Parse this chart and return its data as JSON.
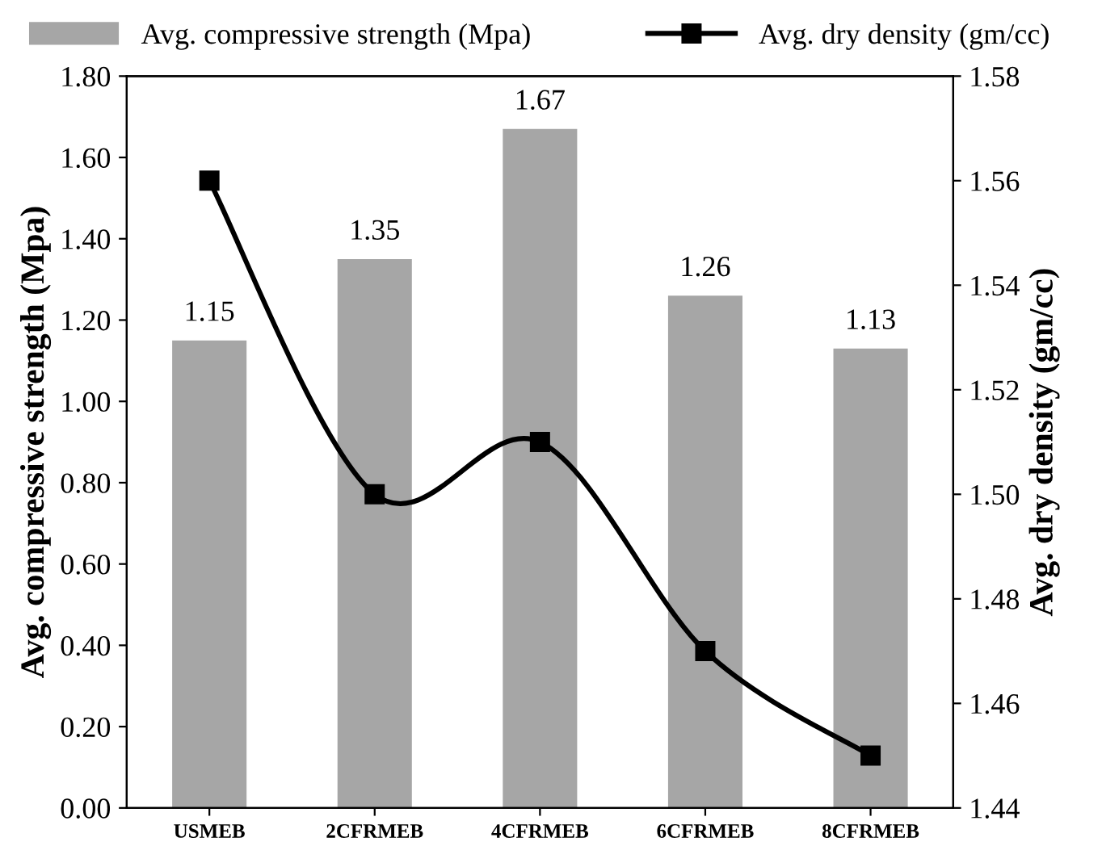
{
  "chart_data": {
    "type": "bar",
    "categories": [
      "USMEB",
      "2CFRMEB",
      "4CFRMEB",
      "6CFRMEB",
      "8CFRMEB"
    ],
    "ylabel": "Avg. compressive strength (Mpa)",
    "y2label": "Avg. dry density (gm/cc)",
    "series": [
      {
        "name": "Avg. compressive strength (Mpa)",
        "color": "#a6a6a6",
        "values": [
          1.15,
          1.35,
          1.67,
          1.26,
          1.13
        ],
        "value_labels": [
          "1.15",
          "1.35",
          "1.67",
          "1.26",
          "1.13"
        ]
      },
      {
        "name": "Avg. dry density (gm/cc)",
        "type": "line",
        "axis": "y2",
        "color": "#000000",
        "marker": "square",
        "line_style": "solid",
        "values": [
          1.56,
          1.5,
          1.51,
          1.47,
          1.45
        ]
      }
    ],
    "ylim": [
      0,
      1.8
    ],
    "yticks": [
      {
        "value": 0,
        "label": "0.00"
      },
      {
        "value": 0.2,
        "label": "0.20"
      },
      {
        "value": 0.4,
        "label": "0.40"
      },
      {
        "value": 0.6,
        "label": "0.60"
      },
      {
        "value": 0.8,
        "label": "0.80"
      },
      {
        "value": 1.0,
        "label": "1.00"
      },
      {
        "value": 1.2,
        "label": "1.20"
      },
      {
        "value": 1.4,
        "label": "1.40"
      },
      {
        "value": 1.6,
        "label": "1.60"
      },
      {
        "value": 1.8,
        "label": "1.80"
      }
    ],
    "y2lim": [
      1.44,
      1.58
    ],
    "y2ticks": [
      {
        "value": 1.44,
        "label": "1.44"
      },
      {
        "value": 1.46,
        "label": "1.46"
      },
      {
        "value": 1.48,
        "label": "1.48"
      },
      {
        "value": 1.5,
        "label": "1.50"
      },
      {
        "value": 1.52,
        "label": "1.52"
      },
      {
        "value": 1.54,
        "label": "1.54"
      },
      {
        "value": 1.56,
        "label": "1.56"
      },
      {
        "value": 1.58,
        "label": "1.58"
      }
    ],
    "grid": false,
    "legend": "top"
  }
}
